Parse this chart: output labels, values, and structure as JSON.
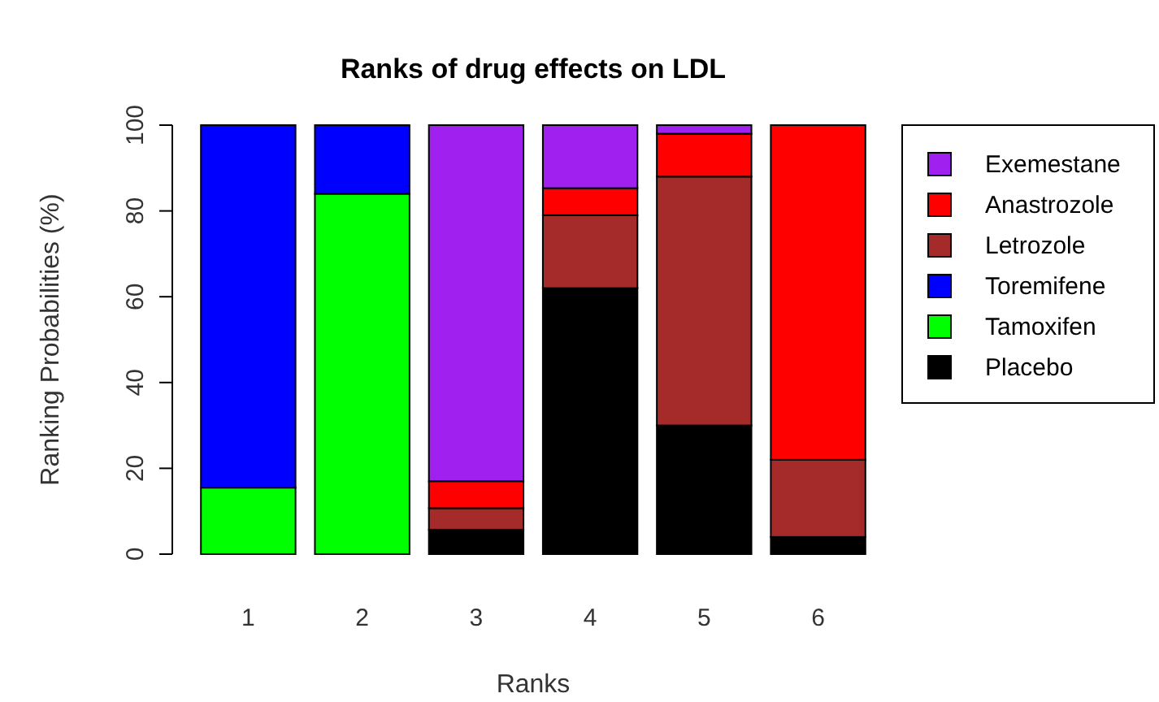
{
  "chart_data": {
    "type": "bar",
    "title": "Ranks of drug effects on LDL",
    "xlabel": "Ranks",
    "ylabel": "Ranking Probabilities (%)",
    "categories": [
      "1",
      "2",
      "3",
      "4",
      "5",
      "6"
    ],
    "stacked": true,
    "ylim": [
      0,
      100
    ],
    "yticks": [
      0,
      20,
      40,
      60,
      80,
      100
    ],
    "legend": "right",
    "grid": false,
    "series": [
      {
        "name": "Placebo",
        "color": "#000000",
        "values": [
          0,
          0,
          5.7,
          62,
          30,
          4
        ]
      },
      {
        "name": "Tamoxifen",
        "color": "#00ff00",
        "values": [
          15.5,
          84,
          0,
          0,
          0,
          0
        ]
      },
      {
        "name": "Toremifene",
        "color": "#0000ff",
        "values": [
          84.5,
          16,
          0,
          0,
          0,
          0
        ]
      },
      {
        "name": "Letrozole",
        "color": "#a52a2a",
        "values": [
          0,
          0,
          5,
          17,
          58,
          18
        ]
      },
      {
        "name": "Anastrozole",
        "color": "#ff0000",
        "values": [
          0,
          0,
          6.3,
          6.3,
          10,
          78
        ]
      },
      {
        "name": "Exemestane",
        "color": "#a020f0",
        "values": [
          0,
          0,
          83,
          14.7,
          2,
          0
        ]
      }
    ]
  }
}
